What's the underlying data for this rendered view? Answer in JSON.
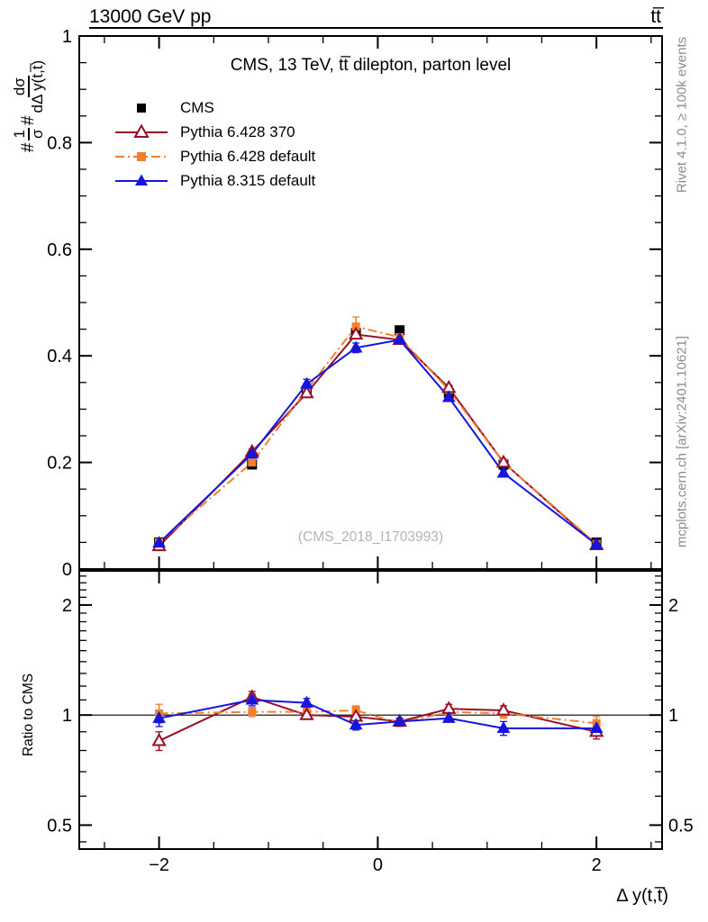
{
  "header": {
    "beam": "13000 GeV pp",
    "process": "tt̅"
  },
  "plot": {
    "title": "CMS, 13 TeV, tt̅ dilepton, parton level",
    "watermark": "(CMS_2018_I1703993)",
    "xlabel": "Δ y(t,t̅)",
    "ratio_label": "Ratio to CMS",
    "ylabel": {
      "hash1": "#",
      "frac1_num": "1",
      "frac1_den": "σ",
      "hash2": "#",
      "frac2_num": "dσ",
      "frac2_den": "dΔ y(t,t̅)"
    }
  },
  "sidebar": {
    "top": "Rivet 4.1.0, ≥ 100k events",
    "bottom": "mcplots.cern.ch [arXiv:2401.10621]"
  },
  "legend": [
    {
      "label": "CMS",
      "color": "#000000",
      "marker": "square",
      "fill": true,
      "line": "none"
    },
    {
      "label": "Pythia 6.428 370",
      "color": "#990f26",
      "marker": "triangle",
      "fill": false,
      "line": "solid"
    },
    {
      "label": "Pythia 6.428 default",
      "color": "#f28030",
      "marker": "square",
      "fill": true,
      "line": "dashdot"
    },
    {
      "label": "Pythia 8.315 default",
      "color": "#1515dd",
      "marker": "triangle",
      "fill": true,
      "line": "solid"
    }
  ],
  "chart_data": {
    "type": "line",
    "x": [
      -2.0,
      -1.15,
      -0.65,
      -0.2,
      0.2,
      0.65,
      1.15,
      2.0
    ],
    "xlim": [
      -2.73,
      2.6
    ],
    "x_major_ticks": [
      -2,
      0,
      2
    ],
    "x_major_labels": [
      "−2",
      "0",
      "2"
    ],
    "x_minor_ticks": [
      -2.5,
      -1.5,
      -1,
      -0.5,
      0.5,
      1,
      1.5,
      2.5
    ],
    "main_panel": {
      "ylim": [
        0,
        1
      ],
      "y_major_ticks": [
        0,
        0.2,
        0.4,
        0.6,
        0.8,
        1
      ],
      "y_major_labels": [
        "0",
        "0.2",
        "0.4",
        "0.6",
        "0.8",
        "1"
      ],
      "y_minor_step": 0.05,
      "series": [
        {
          "name": "CMS",
          "values": [
            0.05,
            0.196,
            0.33,
            0.443,
            0.448,
            0.33,
            0.196,
            0.05
          ],
          "errors": [
            0.004,
            0.006,
            0.007,
            0.008,
            0.008,
            0.007,
            0.006,
            0.004
          ]
        },
        {
          "name": "Pythia 6.428 370",
          "values": [
            0.043,
            0.22,
            0.33,
            0.44,
            0.43,
            0.34,
            0.2,
            0.045
          ],
          "errors": [
            0.003,
            0.005,
            0.005,
            0.006,
            0.006,
            0.005,
            0.005,
            0.003
          ]
        },
        {
          "name": "Pythia 6.428 default",
          "values": [
            0.05,
            0.2,
            0.336,
            0.455,
            0.435,
            0.336,
            0.2,
            0.047
          ],
          "errors": [
            0.004,
            0.005,
            0.006,
            0.018,
            0.008,
            0.006,
            0.005,
            0.003
          ]
        },
        {
          "name": "Pythia 8.315 default",
          "values": [
            0.049,
            0.216,
            0.347,
            0.415,
            0.43,
            0.322,
            0.18,
            0.046
          ],
          "errors": [
            0.003,
            0.006,
            0.009,
            0.009,
            0.008,
            0.007,
            0.006,
            0.003
          ]
        }
      ]
    },
    "ratio_panel": {
      "scale": "log",
      "ylim": [
        0.43,
        2.48
      ],
      "reference_line": 1,
      "y_major_ticks": [
        0.5,
        1,
        2
      ],
      "y_major_labels": [
        "0.5",
        "1",
        "2"
      ],
      "y_minor_ticks": [
        0.45,
        0.6,
        0.7,
        0.8,
        0.9,
        1.1,
        1.2,
        1.3,
        1.4,
        1.5,
        1.6,
        1.7,
        1.8,
        1.9,
        2.1,
        2.2,
        2.3,
        2.4
      ],
      "series": [
        {
          "name": "Pythia 6.428 370",
          "values": [
            0.85,
            1.12,
            1.0,
            0.99,
            0.96,
            1.04,
            1.03,
            0.9
          ],
          "errors": [
            0.05,
            0.04,
            0.02,
            0.02,
            0.02,
            0.03,
            0.03,
            0.04
          ]
        },
        {
          "name": "Pythia 6.428 default",
          "values": [
            1.01,
            1.02,
            1.02,
            1.03,
            0.95,
            1.02,
            1.01,
            0.95
          ],
          "errors": [
            0.06,
            0.03,
            0.02,
            0.03,
            0.02,
            0.02,
            0.03,
            0.04
          ]
        },
        {
          "name": "Pythia 8.315 default",
          "values": [
            0.98,
            1.1,
            1.08,
            0.94,
            0.96,
            0.98,
            0.92,
            0.92
          ],
          "errors": [
            0.05,
            0.04,
            0.03,
            0.03,
            0.02,
            0.02,
            0.04,
            0.04
          ]
        }
      ]
    }
  }
}
